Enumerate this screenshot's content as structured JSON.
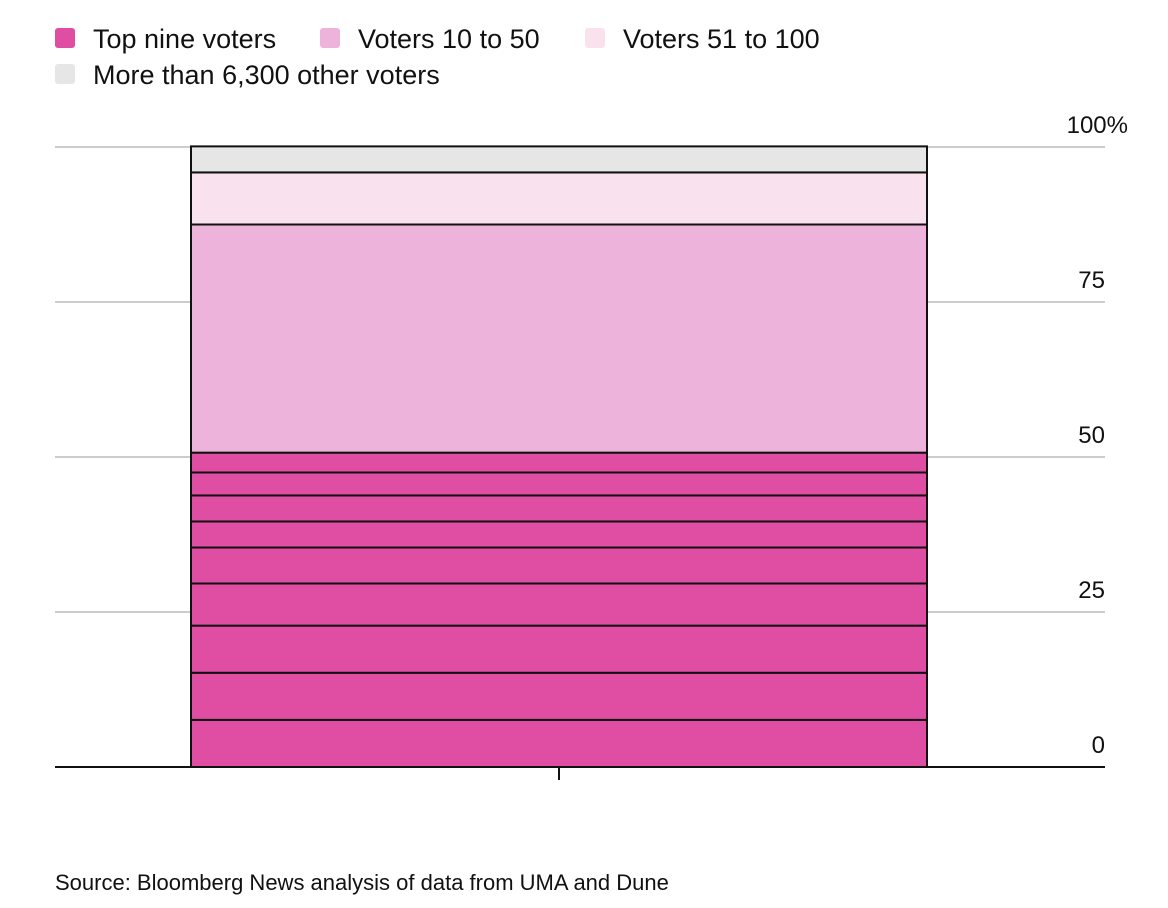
{
  "chart_data": {
    "type": "stacked-bar",
    "series": [
      {
        "name": "Top nine voters",
        "color": "#e04ea3",
        "values": [
          7.6,
          7.6,
          7.6,
          6.8,
          5.8,
          4.2,
          4.2,
          3.7,
          3.2
        ]
      },
      {
        "name": "Voters 10 to 50",
        "color": "#eeb3da",
        "values": [
          36.8
        ]
      },
      {
        "name": "Voters 51 to 100",
        "color": "#f9e1ee",
        "values": [
          8.4
        ]
      },
      {
        "name": "More than 6,300 other voters",
        "color": "#e6e6e6",
        "values": [
          4.2
        ]
      }
    ],
    "ylim": [
      0,
      100
    ],
    "yticks": [
      0,
      25,
      50,
      75,
      {
        "value": 100,
        "label": "100%"
      }
    ],
    "grid": true,
    "source": "Source: Bloomberg News analysis of data from UMA and Dune"
  }
}
